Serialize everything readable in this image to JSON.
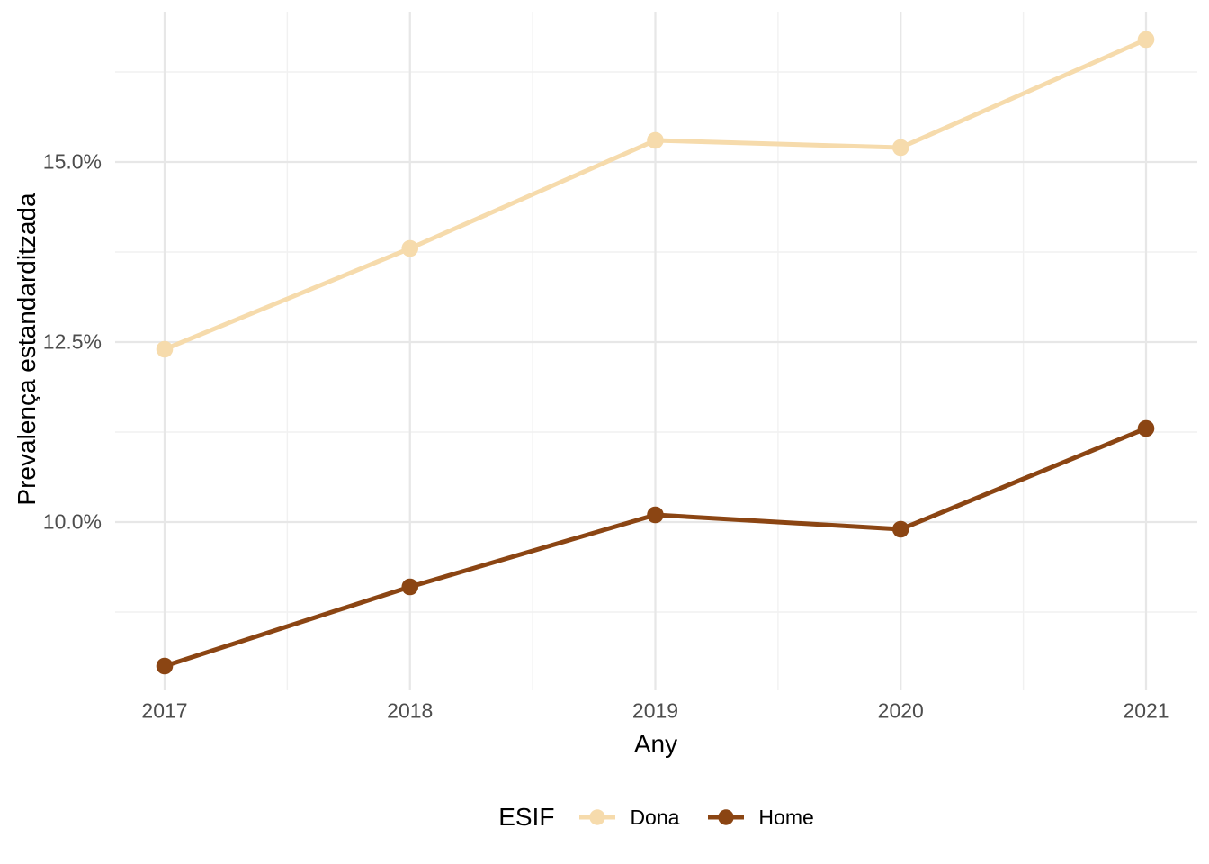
{
  "figure": {
    "background": "#FFFFFF"
  },
  "chart_data": {
    "type": "line",
    "title": "",
    "xlabel": "Any",
    "ylabel": "Prevalença estandarditzada",
    "x": [
      2017,
      2018,
      2019,
      2020,
      2021
    ],
    "x_tick_labels": [
      "2017",
      "2018",
      "2019",
      "2020",
      "2021"
    ],
    "y_axis": {
      "major_ticks": [
        10.0,
        12.5,
        15.0
      ],
      "major_tick_labels": [
        "10.0%",
        "12.5%",
        "15.0%"
      ],
      "minor_ticks": [
        8.75,
        11.25,
        13.75,
        16.25
      ],
      "ylim": [
        7.66,
        17.09
      ],
      "unit": "%"
    },
    "grid": "major-and-minor, light gray on white",
    "legend": {
      "title": "ESIF",
      "position": "bottom"
    },
    "series": [
      {
        "name": "Dona",
        "color": "#F6DBAC",
        "values": [
          12.4,
          13.8,
          15.3,
          15.2,
          16.7
        ]
      },
      {
        "name": "Home",
        "color": "#8B4513",
        "values": [
          8.0,
          9.1,
          10.1,
          9.9,
          11.3
        ]
      }
    ],
    "style_colors": {
      "tick_label": "#4D4D4D",
      "axis_title": "#000000",
      "grid_major": "#E7E7E7",
      "grid_minor": "#F1F1F1"
    }
  }
}
